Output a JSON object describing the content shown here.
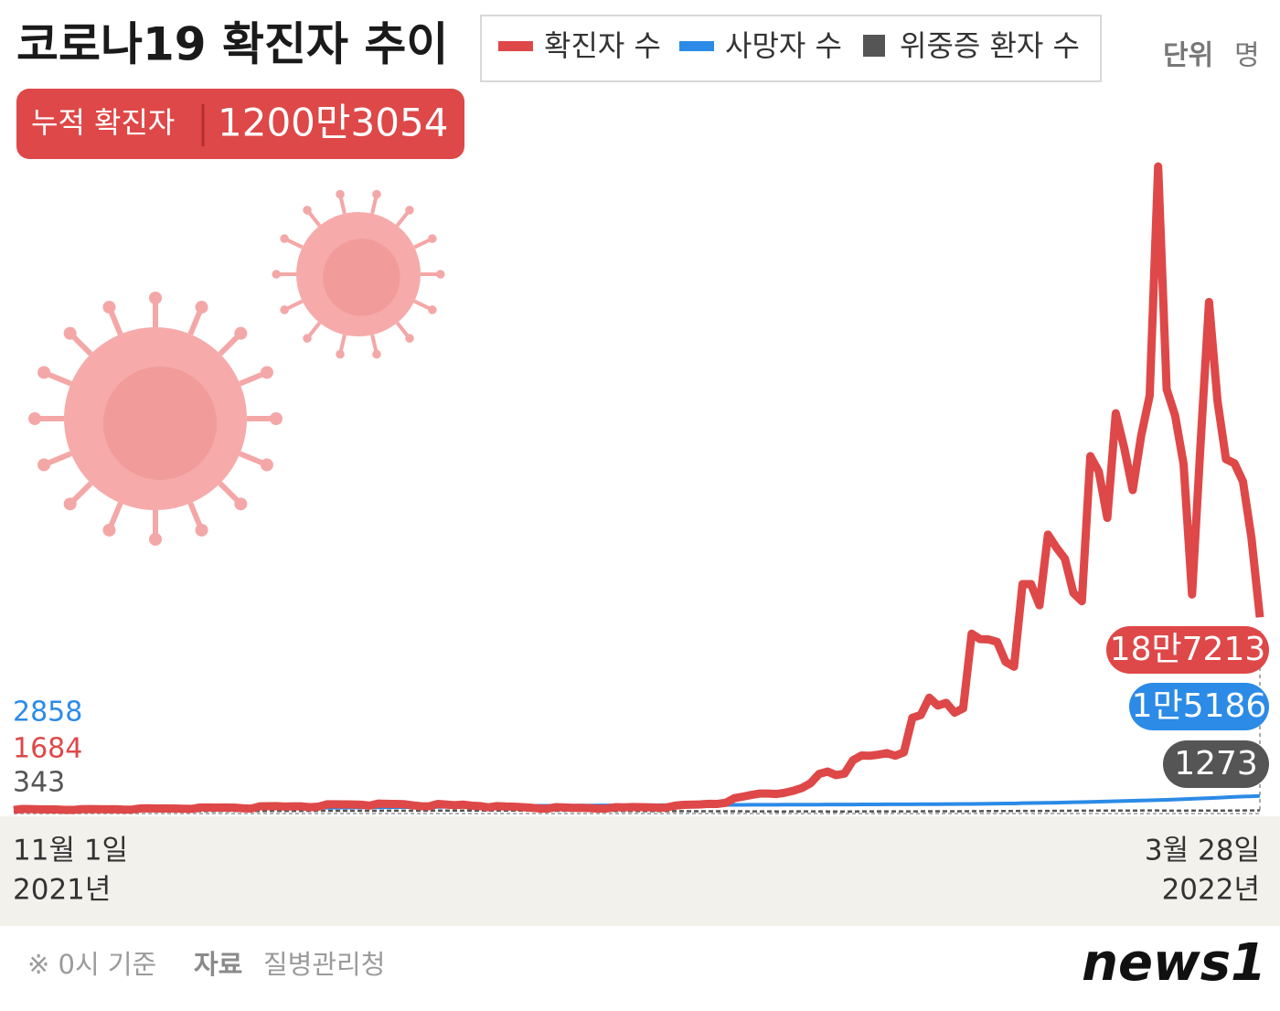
{
  "chart_data": {
    "type": "line",
    "title": "코로나19 확진자 추이",
    "unit_label": "단위",
    "unit": "명",
    "badge_label": "누적 확진자",
    "badge_value": "1200만3054",
    "start_year": "2021년",
    "end_year": "2022년",
    "note": "※ 0시 기준",
    "source_label": "자료",
    "source": "질병관리청",
    "logo": "news1",
    "ylim": [
      0,
      625000
    ],
    "categories": [
      "11월 1일",
      null,
      null,
      null,
      null,
      null,
      null,
      null,
      null,
      null,
      null,
      null,
      null,
      null,
      null,
      null,
      null,
      null,
      null,
      null,
      null,
      null,
      null,
      null,
      null,
      null,
      null,
      null,
      null,
      null,
      null,
      null,
      null,
      null,
      null,
      null,
      null,
      null,
      null,
      null,
      null,
      null,
      null,
      null,
      null,
      null,
      null,
      null,
      null,
      null,
      null,
      null,
      null,
      null,
      null,
      null,
      null,
      null,
      null,
      null,
      null,
      null,
      null,
      null,
      null,
      null,
      null,
      null,
      null,
      null,
      null,
      null,
      null,
      null,
      null,
      null,
      null,
      null,
      null,
      null,
      null,
      null,
      null,
      null,
      null,
      null,
      null,
      null,
      null,
      null,
      null,
      null,
      null,
      null,
      null,
      null,
      null,
      null,
      null,
      null,
      null,
      null,
      null,
      null,
      null,
      null,
      null,
      null,
      null,
      null,
      null,
      null,
      null,
      null,
      null,
      null,
      null,
      null,
      null,
      null,
      null,
      null,
      null,
      null,
      null,
      null,
      null,
      null,
      null,
      null,
      null,
      null,
      null,
      null,
      null,
      null,
      null,
      null,
      null,
      null,
      null,
      null,
      null,
      null,
      null,
      null,
      null,
      "3월 28일"
    ],
    "series": [
      {
        "name": "위중증 환자 수",
        "color": "#555555",
        "values": [
          343,
          357,
          378,
          382,
          405,
          409,
          411,
          425,
          460,
          473,
          475,
          473,
          485,
          483,
          495,
          495,
          522,
          506,
          499,
          508,
          517,
          515,
          549,
          586,
          612,
          634,
          647,
          629,
          639,
          661,
          723,
          733,
          736,
          744,
          752,
          774,
          840,
          857,
          852,
          856,
          856,
          894,
          876,
          906,
          964,
          989,
          971,
          1016,
          997,
          1025,
          1063,
          1063,
          1083,
          1084,
          1105,
          1102,
          1088,
          1151,
          1145,
          1115,
          1084,
          1015,
          1024,
          1015,
          882,
          882,
          857,
          838,
          778,
          749,
          715,
          665,
          651,
          627,
          602,
          596,
          600,
          546,
          526,
          519,
          462,
          434,
          431,
          418,
          418,
          392,
          385,
          350,
          312,
          286,
          274,
          272,
          278,
          278,
          288,
          299,
          273,
          268,
          272,
          274,
          285,
          306,
          313,
          311,
          324,
          331,
          313,
          389,
          408,
          439,
          459,
          439,
          480,
          512,
          581,
          655,
          643,
          663,
          715,
          727,
          762,
          797,
          766,
          885,
          896,
          955,
          954,
          1007,
          1087,
          1113,
          1116,
          1066,
          1074,
          1158,
          1196,
          1159,
          1049,
          1033,
          1033,
          1130,
          1104,
          1084,
          1081,
          1164,
          1089,
          1215,
          1244,
          1273
        ]
      },
      {
        "name": "사망자 수",
        "color": "#2b8be6",
        "values": [
          2858,
          2873,
          2892,
          2915,
          2928,
          2952,
          2976,
          2986,
          3006,
          3032,
          3050,
          3078,
          3098,
          3115,
          3125,
          3137,
          3158,
          3187,
          3215,
          3244,
          3271,
          3301,
          3328,
          3363,
          3401,
          3429,
          3440,
          3462,
          3480,
          3505,
          3562,
          3580,
          3658,
          3705,
          3739,
          3776,
          3809,
          3849,
          3893,
          3957,
          4020,
          4077,
          4130,
          4171,
          4253,
          4318,
          4386,
          4456,
          4518,
          4591,
          4644,
          4722,
          4831,
          4876,
          4955,
          5015,
          5071,
          5186,
          5382,
          5488,
          5625,
          5663,
          5703,
          5740,
          5781,
          5838,
          5882,
          5929,
          5987,
          6013,
          6037,
          6072,
          6113,
          6166,
          6210,
          6242,
          6281,
          6333,
          6378,
          6405,
          6452,
          6501,
          6540,
          6564,
          6588,
          6620,
          6654,
          6678,
          6705,
          6728,
          6755,
          6772,
          6787,
          6812,
          6836,
          6873,
          6888,
          6912,
          6929,
          6951,
          6994,
          7045,
          7061,
          7102,
          7115,
          7137,
          7202,
          7238,
          7283,
          7318,
          7360,
          7405,
          7450,
          7508,
          7607,
          7688,
          7767,
          7873,
          7958,
          8266,
          8394,
          8490,
          8586,
          8707,
          8901,
          9096,
          9257,
          9443,
          9646,
          9875,
          10104,
          10333,
          10581,
          10826,
          11052,
          11253,
          11481,
          11781,
          12101,
          12428,
          12757,
          13141,
          13432,
          13902,
          14294,
          14601,
          14899,
          15186
        ],
        "value_labels": [
          null,
          null,
          null,
          null,
          null,
          null,
          null,
          null,
          null,
          null,
          null,
          null,
          null,
          null,
          null,
          null,
          null,
          null,
          null,
          null,
          null,
          null,
          null,
          null,
          null,
          null,
          null,
          null,
          null,
          null,
          null,
          null,
          null,
          null,
          null,
          null,
          null,
          null,
          null,
          null,
          null,
          null,
          null,
          null,
          null,
          null,
          null,
          null,
          null,
          null,
          null,
          null,
          null,
          null,
          null,
          null,
          null,
          null,
          null,
          null,
          null,
          null,
          null,
          null,
          null,
          null,
          null,
          null,
          null,
          null,
          null,
          null,
          null,
          null,
          null,
          null,
          null,
          null,
          null,
          null,
          null,
          null,
          null,
          null,
          null,
          null,
          null,
          null,
          null,
          null,
          null,
          null,
          null,
          null,
          null,
          null,
          null,
          null,
          null,
          null,
          null,
          null,
          null,
          null,
          null,
          null,
          null,
          null,
          null,
          null,
          null,
          null,
          null,
          null,
          null,
          null,
          null,
          null,
          null,
          null,
          null,
          null,
          null,
          null,
          null,
          null,
          null,
          null,
          null,
          null,
          null,
          null,
          null,
          null,
          null,
          null,
          null,
          null,
          null,
          null,
          null,
          null,
          null,
          null,
          null,
          null,
          null,
          "1만5186"
        ]
      },
      {
        "name": "확진자 수",
        "color": "#de4848",
        "values": [
          1684,
          2667,
          2482,
          2344,
          2248,
          2224,
          1758,
          1715,
          2425,
          2520,
          2368,
          2324,
          2419,
          2006,
          2125,
          3187,
          3292,
          3034,
          3206,
          3120,
          2827,
          2699,
          4115,
          4116,
          3938,
          4068,
          3928,
          3308,
          3032,
          5123,
          5266,
          5352,
          4944,
          5128,
          5126,
          4325,
          4954,
          7175,
          7102,
          7022,
          6977,
          6689,
          5817,
          7850,
          7622,
          7435,
          7314,
          6236,
          5318,
          5202,
          7456,
          6919,
          6233,
          6842,
          5842,
          5419,
          4207,
          5409,
          5037,
          4875,
          4416,
          3833,
          3129,
          3022,
          4443,
          4126,
          3717,
          3713,
          3376,
          3007,
          3094,
          4388,
          4167,
          4542,
          4423,
          4195,
          3858,
          4070,
          5804,
          6603,
          6769,
          7009,
          7630,
          7513,
          8571,
          13012,
          14518,
          16096,
          17542,
          17532,
          17079,
          18342,
          20270,
          22907,
          27443,
          36362,
          38691,
          35286,
          36719,
          49567,
          54121,
          53926,
          54941,
          56431,
          53926,
          57177,
          90443,
          93135,
          109831,
          102211,
          104829,
          95362,
          99573,
          171452,
          166209,
          165890,
          163566,
          144362,
          139626,
          219241,
          219241,
          198799,
          266853,
          254327,
          243628,
          210716,
          202721,
          342446,
          327549,
          282987,
          383665,
          350190,
          309790,
          362338,
          400741,
          621328,
          407017,
          381454,
          334708,
          209169,
          353980,
          490881,
          395598,
          339514,
          335580,
          318130,
          264000,
          187213
        ],
        "value_labels": [
          null,
          null,
          null,
          null,
          null,
          null,
          null,
          null,
          null,
          null,
          null,
          null,
          null,
          null,
          null,
          null,
          null,
          null,
          null,
          null,
          null,
          null,
          null,
          null,
          null,
          null,
          null,
          null,
          null,
          null,
          null,
          null,
          null,
          null,
          null,
          null,
          null,
          null,
          null,
          null,
          null,
          null,
          null,
          null,
          null,
          null,
          null,
          null,
          null,
          null,
          null,
          null,
          null,
          null,
          null,
          null,
          null,
          null,
          null,
          null,
          null,
          null,
          null,
          null,
          null,
          null,
          null,
          null,
          null,
          null,
          null,
          null,
          null,
          null,
          null,
          null,
          null,
          null,
          null,
          null,
          null,
          null,
          null,
          null,
          null,
          null,
          null,
          null,
          null,
          null,
          null,
          null,
          null,
          null,
          null,
          null,
          null,
          null,
          null,
          null,
          null,
          null,
          null,
          null,
          null,
          null,
          null,
          null,
          null,
          null,
          null,
          null,
          null,
          null,
          null,
          null,
          null,
          null,
          null,
          null,
          null,
          null,
          null,
          null,
          null,
          null,
          null,
          null,
          null,
          null,
          null,
          null,
          null,
          null,
          null,
          null,
          null,
          null,
          null,
          null,
          null,
          null,
          null,
          null,
          null,
          null,
          null,
          "18만7213"
        ]
      }
    ]
  }
}
